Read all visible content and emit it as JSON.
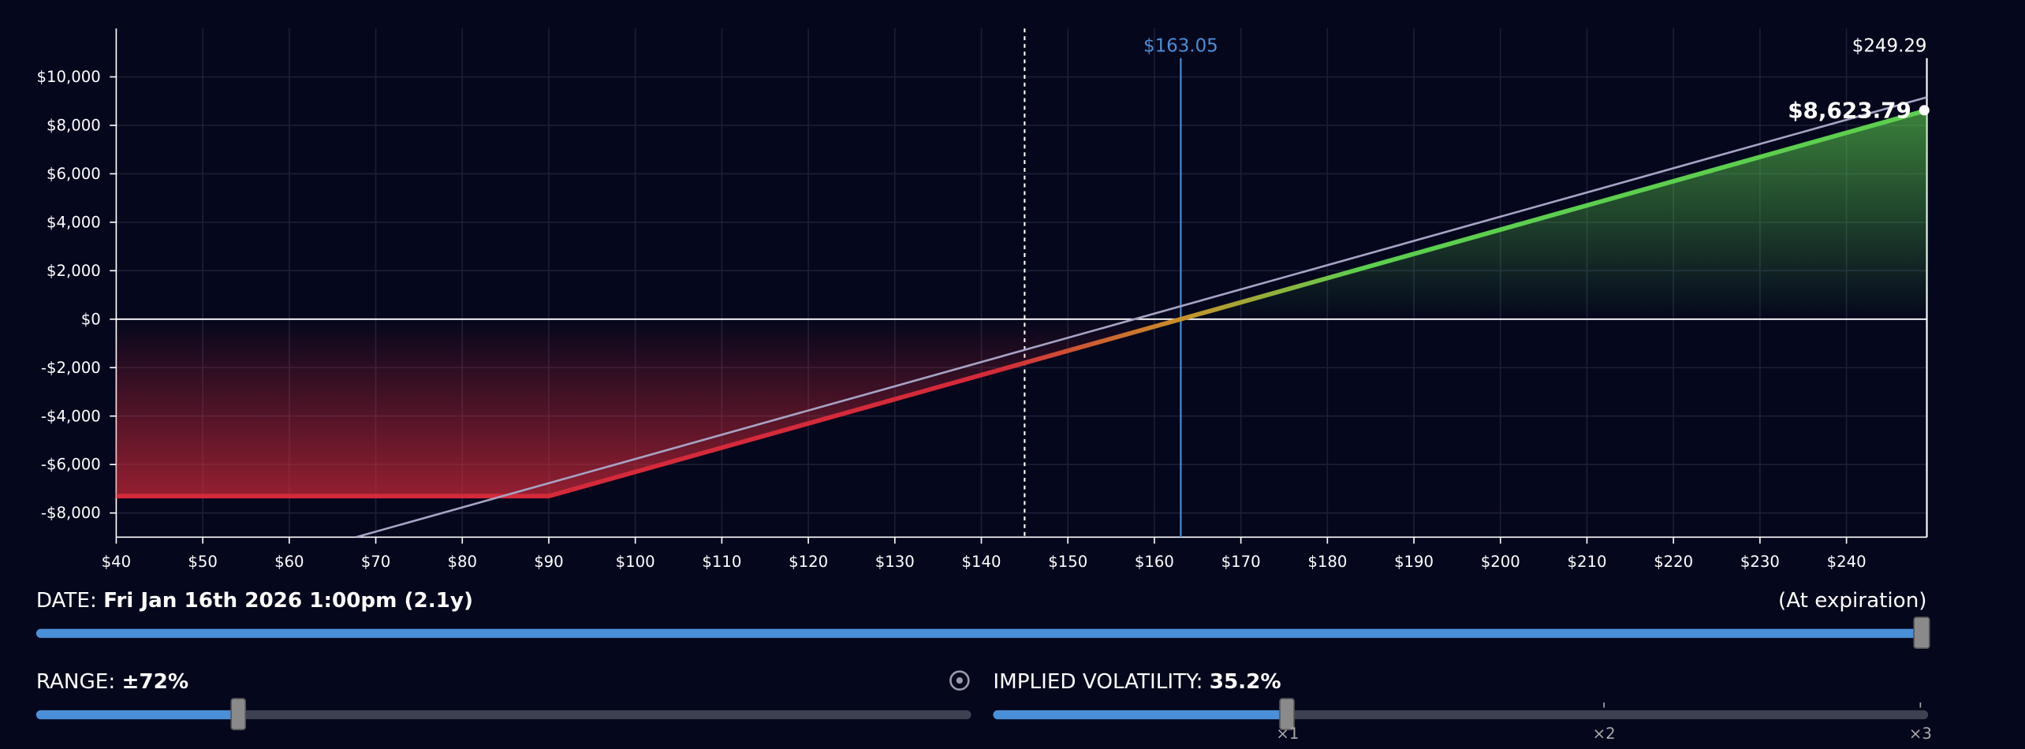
{
  "chart_data": {
    "type": "line",
    "xlim": [
      40,
      249.29
    ],
    "ylim": [
      -9000,
      12000
    ],
    "xticks": [
      {
        "value": 40,
        "label": "$40"
      },
      {
        "value": 50,
        "label": "$50"
      },
      {
        "value": 60,
        "label": "$60"
      },
      {
        "value": 70,
        "label": "$70"
      },
      {
        "value": 80,
        "label": "$80"
      },
      {
        "value": 90,
        "label": "$90"
      },
      {
        "value": 100,
        "label": "$100"
      },
      {
        "value": 110,
        "label": "$110"
      },
      {
        "value": 120,
        "label": "$120"
      },
      {
        "value": 130,
        "label": "$130"
      },
      {
        "value": 140,
        "label": "$140"
      },
      {
        "value": 150,
        "label": "$150"
      },
      {
        "value": 160,
        "label": "$160"
      },
      {
        "value": 170,
        "label": "$170"
      },
      {
        "value": 180,
        "label": "$180"
      },
      {
        "value": 190,
        "label": "$190"
      },
      {
        "value": 200,
        "label": "$200"
      },
      {
        "value": 210,
        "label": "$210"
      },
      {
        "value": 220,
        "label": "$220"
      },
      {
        "value": 230,
        "label": "$230"
      },
      {
        "value": 240,
        "label": "$240"
      }
    ],
    "yticks": [
      {
        "value": -8000,
        "label": "-$8,000"
      },
      {
        "value": -6000,
        "label": "-$6,000"
      },
      {
        "value": -4000,
        "label": "-$4,000"
      },
      {
        "value": -2000,
        "label": "-$2,000"
      },
      {
        "value": 0,
        "label": "$0"
      },
      {
        "value": 2000,
        "label": "$2,000"
      },
      {
        "value": 4000,
        "label": "$4,000"
      },
      {
        "value": 6000,
        "label": "$6,000"
      },
      {
        "value": 8000,
        "label": "$8,000"
      },
      {
        "value": 10000,
        "label": "$10,000"
      }
    ],
    "grid": true,
    "series": [
      {
        "x": [
          40,
          90,
          249.29
        ],
        "values": [
          -7305,
          -7305,
          8623.79
        ],
        "value_labels": [
          null,
          null,
          "$8,623.79"
        ],
        "color_loss": "#d42a3a",
        "color_gain": "#5ccf4e",
        "fill": true
      },
      {
        "x": [
          67.7,
          249.29
        ],
        "values": [
          -9000,
          9160
        ],
        "color": "#a6a3c4"
      }
    ],
    "vlines": [
      {
        "value": 145,
        "color": "#ffffff",
        "dashed": true
      },
      {
        "value": 163.05,
        "label": "$163.05",
        "color": "#4a8fd8"
      },
      {
        "value": 249.29,
        "label": "$249.29",
        "color": "#ffffff"
      }
    ]
  },
  "controls": {
    "date": {
      "label": "DATE:",
      "value": "Fri Jan 16th 2026 1:00pm (2.1y)",
      "end": "(At expiration)"
    },
    "range": {
      "label": "RANGE:",
      "value": "±72%"
    },
    "iv": {
      "label": "IMPLIED VOLATILITY:",
      "value": "35.2%",
      "marks": [
        "×1",
        "×2",
        "×3"
      ]
    }
  }
}
